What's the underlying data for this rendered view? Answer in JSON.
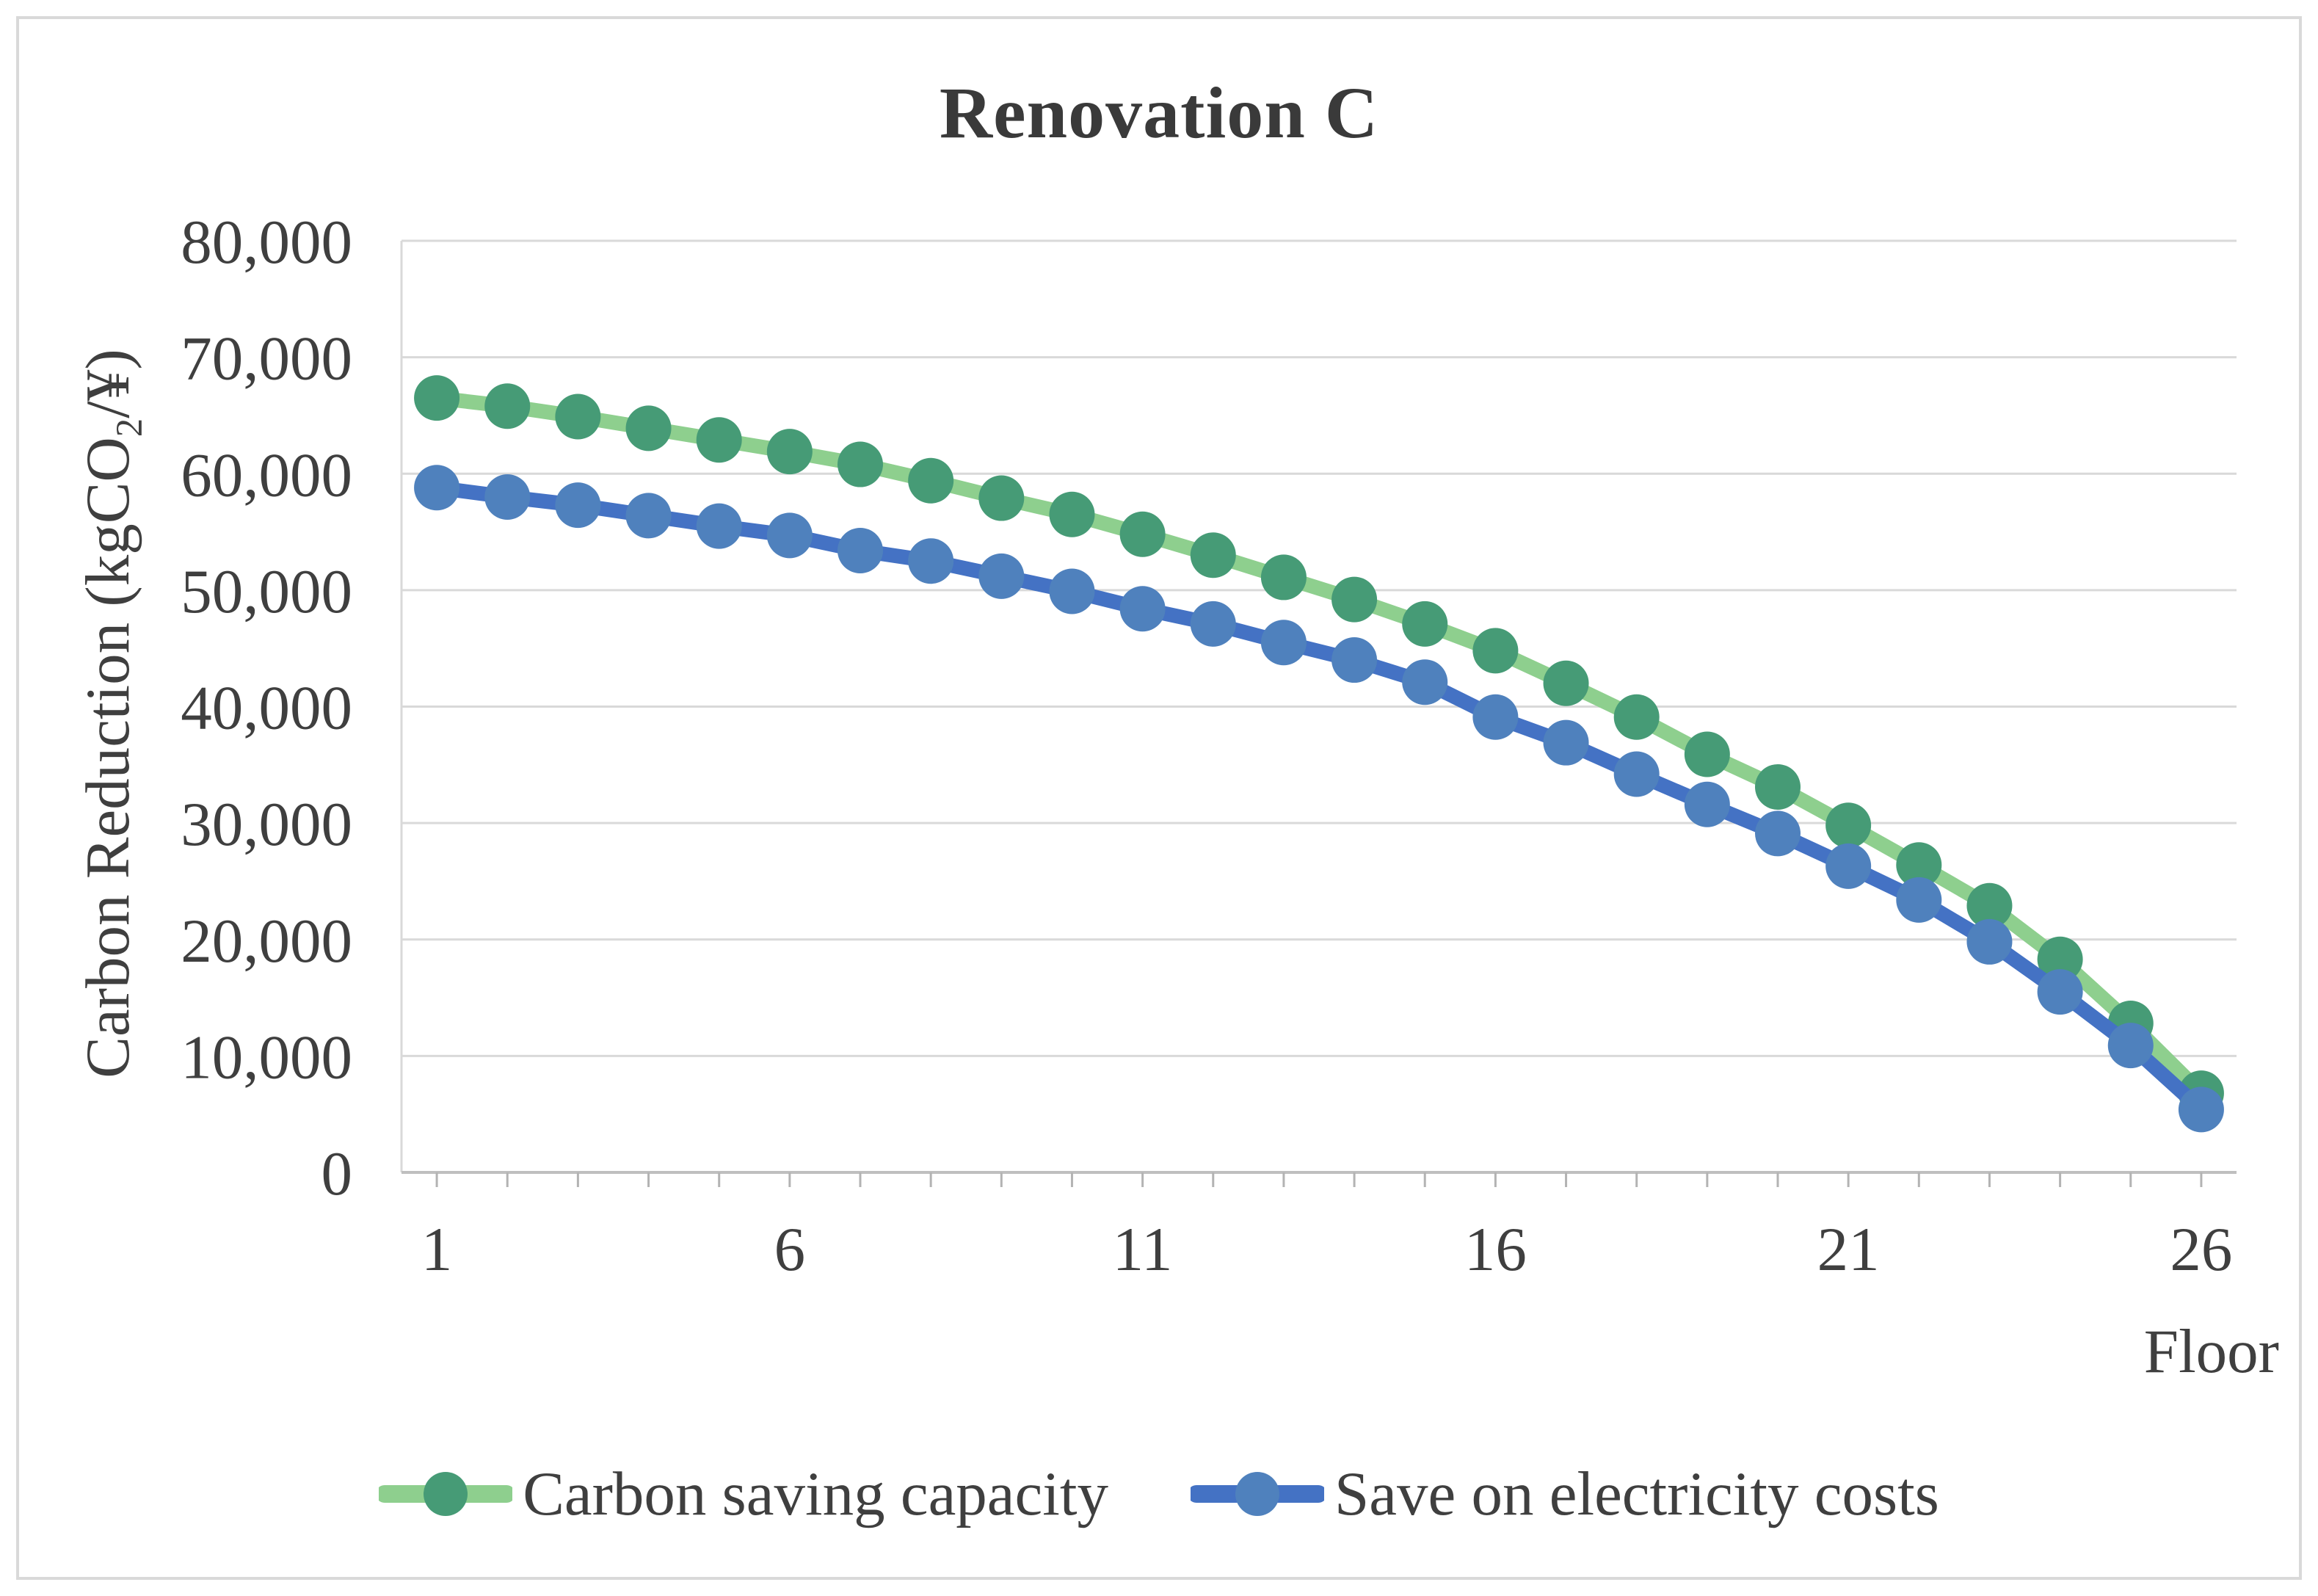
{
  "figure": {
    "y_axis_title": {
      "pre": "Carbon Reduction (kgCO",
      "sub": "2",
      "post": "/¥)"
    }
  },
  "chart_data": {
    "type": "line",
    "title": "Renovation C",
    "xlabel": "Floor",
    "ylabel": "Carbon Reduction (kgCO2/¥)",
    "x": [
      1,
      2,
      3,
      4,
      5,
      6,
      7,
      8,
      9,
      10,
      11,
      12,
      13,
      14,
      15,
      16,
      17,
      18,
      19,
      20,
      21,
      22,
      23,
      24,
      25,
      26
    ],
    "series": [
      {
        "name": "Carbon saving capacity",
        "marker_color": "#469b76",
        "line_color": "#8ecf8e",
        "values": [
          66500,
          65800,
          64900,
          63900,
          62900,
          61900,
          60800,
          59400,
          57900,
          56500,
          54800,
          53000,
          51100,
          49200,
          47100,
          44800,
          42000,
          39100,
          35900,
          33100,
          29800,
          26400,
          22900,
          18300,
          12800,
          6800
        ]
      },
      {
        "name": "Save on electricity costs",
        "marker_color": "#4f81bd",
        "line_color": "#4472c4",
        "values": [
          58800,
          58000,
          57300,
          56400,
          55500,
          54700,
          53400,
          52500,
          51200,
          49900,
          48400,
          47100,
          45500,
          44000,
          42100,
          39100,
          36900,
          34200,
          31600,
          29100,
          26300,
          23400,
          19800,
          15500,
          10900,
          5400
        ]
      }
    ],
    "ylim": [
      0,
      80000
    ],
    "y_major_unit": 10000,
    "y_tick_labels": [
      "0",
      "10,000",
      "20,000",
      "30,000",
      "40,000",
      "50,000",
      "60,000",
      "70,000",
      "80,000"
    ],
    "x_tick_values": [
      1,
      6,
      11,
      16,
      21,
      26
    ],
    "grid": true,
    "legend_position": "bottom",
    "colors": {
      "gridline": "#d9d9d9",
      "axis_line": "#bfbfbf",
      "tick_mark": "#b3b3b3",
      "text": "#3f3f3f"
    }
  }
}
